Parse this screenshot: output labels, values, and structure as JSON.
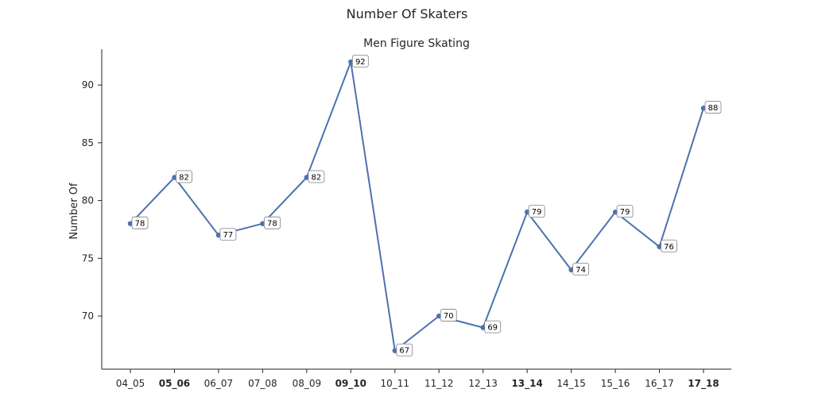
{
  "figure_title": "Number Of Skaters",
  "chart_data": {
    "type": "line",
    "title": "Men Figure Skating",
    "xlabel": "",
    "ylabel": "Number Of",
    "categories": [
      "04_05",
      "05_06",
      "06_07",
      "07_08",
      "08_09",
      "09_10",
      "10_11",
      "11_12",
      "12_13",
      "13_14",
      "14_15",
      "15_16",
      "16_17",
      "17_18"
    ],
    "bold_categories": [
      "05_06",
      "09_10",
      "13_14",
      "17_18"
    ],
    "series": [
      {
        "values": [
          78,
          82,
          77,
          78,
          82,
          92,
          67,
          70,
          69,
          79,
          74,
          79,
          76,
          88
        ]
      }
    ],
    "data_labels": [
      "78",
      "82",
      "77",
      "78",
      "82",
      "92",
      "67",
      "70",
      "69",
      "79",
      "74",
      "79",
      "76",
      "88"
    ],
    "y_ticks": [
      70,
      75,
      80,
      85,
      90
    ],
    "ylim": [
      65.4,
      93.1
    ],
    "grid": false,
    "legend": "none",
    "line_color": "#4c72b0"
  }
}
